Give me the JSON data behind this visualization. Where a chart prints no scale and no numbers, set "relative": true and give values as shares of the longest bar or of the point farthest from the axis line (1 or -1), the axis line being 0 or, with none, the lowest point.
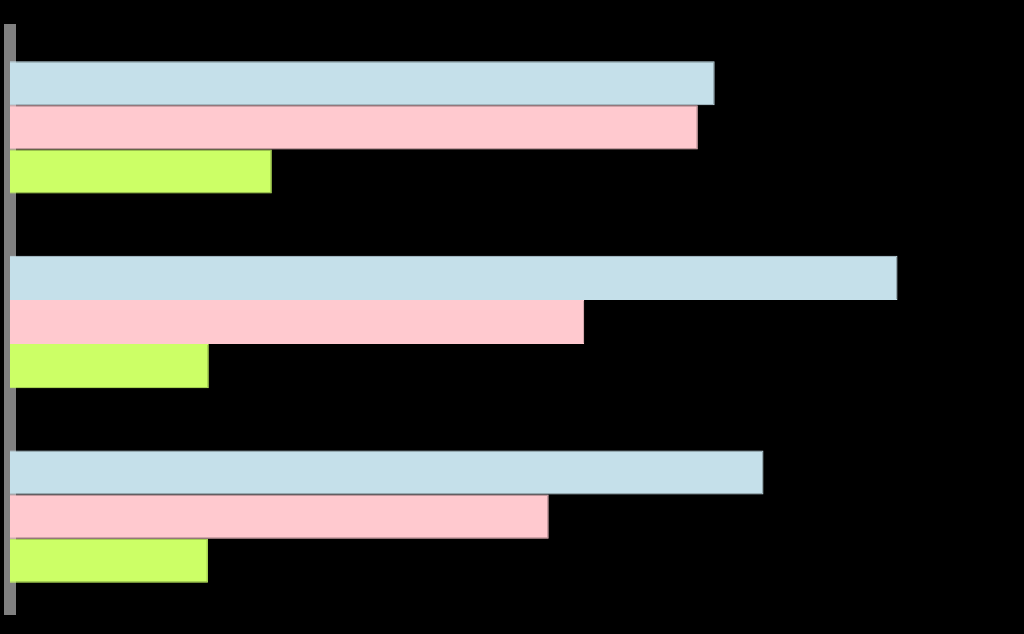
{
  "chart_data": {
    "type": "bar",
    "orientation": "horizontal",
    "relative": true,
    "categories": [
      null,
      null,
      null
    ],
    "series": [
      {
        "color": "#c5e0ea",
        "values": [
          0.794,
          1,
          0.849
        ]
      },
      {
        "color": "#ffc9cf",
        "values": [
          0.775,
          0.647,
          0.607
        ]
      },
      {
        "color": "#ccff66",
        "values": [
          0.295,
          0.224,
          0.223
        ]
      }
    ],
    "legend": false
  }
}
